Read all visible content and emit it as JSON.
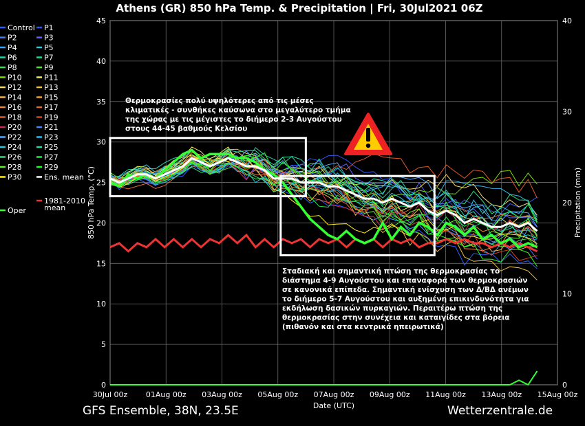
{
  "chart_data": {
    "type": "line",
    "title": "Athens  (GR)  850 hPa Temp. & Precipitation | Fri, 30Jul2021 06Z",
    "xlabel": "Date (UTC)",
    "ylabel": "850 hPa Temp. (°C)",
    "y2label": "Precipitation (mm)",
    "ylim": [
      0,
      45
    ],
    "y2lim": [
      0,
      40
    ],
    "yticks": [
      0,
      5,
      10,
      15,
      20,
      25,
      30,
      35,
      40,
      45
    ],
    "y2ticks": [
      0,
      10,
      20,
      30,
      40
    ],
    "xlim": [
      0,
      64
    ],
    "x_tick_labels": [
      "30Jul 00z",
      "01Aug 00z",
      "03Aug 00z",
      "05Aug 00z",
      "07Aug 00z",
      "09Aug 00z",
      "11Aug 00z",
      "13Aug 00z",
      "15Aug 00z"
    ],
    "x_tick_days": [
      0,
      2,
      4,
      6,
      8,
      10,
      12,
      14,
      16
    ],
    "grid": true,
    "legend_position": "left-outside",
    "legend": [
      {
        "label": "Control",
        "color": "#2f5bff"
      },
      {
        "label": "P1",
        "color": "#3355ee"
      },
      {
        "label": "P2",
        "color": "#4a78ff"
      },
      {
        "label": "P3",
        "color": "#5a63ff"
      },
      {
        "label": "P4",
        "color": "#3fa0ff"
      },
      {
        "label": "P5",
        "color": "#33c6d8"
      },
      {
        "label": "P6",
        "color": "#2ad0b0"
      },
      {
        "label": "P7",
        "color": "#22d890"
      },
      {
        "label": "P8",
        "color": "#33dd55"
      },
      {
        "label": "P9",
        "color": "#55e033"
      },
      {
        "label": "P10",
        "color": "#7ae000"
      },
      {
        "label": "P11",
        "color": "#eeee55"
      },
      {
        "label": "P12",
        "color": "#f5d76e"
      },
      {
        "label": "P13",
        "color": "#f0c040"
      },
      {
        "label": "P14",
        "color": "#f2b24a"
      },
      {
        "label": "P15",
        "color": "#f0a030"
      },
      {
        "label": "P16",
        "color": "#e8893a"
      },
      {
        "label": "P17",
        "color": "#e06a30"
      },
      {
        "label": "P18",
        "color": "#e05a2a"
      },
      {
        "label": "P19",
        "color": "#dd4020"
      },
      {
        "label": "P20",
        "color": "#cc2a55"
      },
      {
        "label": "P21",
        "color": "#4488ff"
      },
      {
        "label": "P22",
        "color": "#55aaff"
      },
      {
        "label": "P23",
        "color": "#33bbee"
      },
      {
        "label": "P24",
        "color": "#22ccdd"
      },
      {
        "label": "P25",
        "color": "#22ddaa"
      },
      {
        "label": "P26",
        "color": "#33dd77"
      },
      {
        "label": "P27",
        "color": "#22ee44"
      },
      {
        "label": "P28",
        "color": "#66ee22"
      },
      {
        "label": "P29",
        "color": "#22ff22"
      },
      {
        "label": "P30",
        "color": "#ffee22"
      },
      {
        "label": "Ens. mean",
        "color": "#ffffff"
      },
      {
        "label": "Oper",
        "color": "#33ff33"
      },
      {
        "label": "1981-2010 mean",
        "color": "#ee3333"
      }
    ],
    "ensemble_mean": [
      25.5,
      25.0,
      25.5,
      26.0,
      26.0,
      25.5,
      26.0,
      26.5,
      27.0,
      28.0,
      27.5,
      27.0,
      27.5,
      28.0,
      27.5,
      27.0,
      27.0,
      26.5,
      25.5,
      25.5,
      25.5,
      25.0,
      25.0,
      25.0,
      24.5,
      24.5,
      24.0,
      23.5,
      23.0,
      23.0,
      22.5,
      23.0,
      22.5,
      22.0,
      22.5,
      21.5,
      21.0,
      21.5,
      21.0,
      20.0,
      20.5,
      20.0,
      19.5,
      19.5,
      20.0,
      19.5,
      20.0,
      19.0
    ],
    "climatology_mean": [
      17.0,
      17.5,
      16.5,
      17.5,
      17.0,
      18.0,
      17.0,
      18.0,
      17.0,
      18.0,
      17.0,
      18.0,
      17.5,
      18.5,
      17.5,
      18.5,
      17.0,
      18.0,
      17.0,
      18.0,
      17.5,
      18.0,
      17.0,
      18.0,
      17.5,
      18.0,
      17.0,
      18.0,
      17.5,
      18.0,
      17.0,
      18.0,
      17.5,
      18.0,
      17.0,
      17.5,
      17.5,
      18.0,
      17.5,
      18.0,
      17.5,
      17.5,
      17.0,
      17.5,
      17.0,
      17.5,
      17.0,
      16.5
    ],
    "oper": [
      25.0,
      24.5,
      26.0,
      25.5,
      26.0,
      25.5,
      26.5,
      27.5,
      28.5,
      29.0,
      28.0,
      28.5,
      28.5,
      28.5,
      28.0,
      28.0,
      27.5,
      26.5,
      26.0,
      25.0,
      23.5,
      22.0,
      20.5,
      19.5,
      18.5,
      18.0,
      19.0,
      18.0,
      17.5,
      18.0,
      20.0,
      18.0,
      19.5,
      18.5,
      20.0,
      19.5,
      18.5,
      20.0,
      19.5,
      18.5,
      19.5,
      18.0,
      18.5,
      17.5,
      18.0,
      17.0,
      17.5,
      17.0
    ],
    "precipitation_mm": [
      0,
      0,
      0,
      0,
      0,
      0,
      0,
      0,
      0,
      0,
      0,
      0,
      0,
      0,
      0,
      0,
      0,
      0,
      0,
      0,
      0,
      0,
      0,
      0,
      0,
      0,
      0,
      0,
      0,
      0,
      0,
      0,
      0,
      0,
      0,
      0,
      0,
      0,
      0,
      0,
      0,
      0,
      0,
      0,
      0,
      0.5,
      0,
      1.5
    ],
    "annotations": [
      {
        "text": [
          "Θερμοκρασίες πολύ υψηλότερες από τις μέσες",
          "κλιματικές - συνθήκες καύσωνα στο μεγαλύτερο τμήμα",
          "της χώρας με τις μέγιστες το διήμερο 2-3 Αυγούστου",
          "στους 44-45 βαθμούς Κελσίου"
        ]
      },
      {
        "text": [
          "Σταδιακή και σημαντική πτώση της θερμοκρασίας το",
          "διάστημα 4-9 Αυγούστου και επαναφορά των θερμοκρασιών",
          "σε κανονικά επίπεδα. Σημαντική ενίσχυση των Δ/ΒΔ ανέμων",
          "το διήμερο 5-7 Αυγούστου και αυξημένη επικινδυνότητα για",
          "εκδήλωση δασικών πυρκαγιών. Περαιτέρω πτώση της",
          "θερμοκρασίας στην συνέχεια και καταιγίδες στα βόρεια",
          "(πιθανόν και στα κεντρικά ηπειρωτικά)"
        ]
      }
    ],
    "highlight_boxes": [
      {
        "x_days": [
          0.0,
          7.0
        ],
        "y_temp": [
          23.3,
          30.5
        ]
      },
      {
        "x_days": [
          6.1,
          11.6
        ],
        "y_temp": [
          16.0,
          25.8
        ]
      }
    ],
    "warning_icon": "warning-triangle-icon",
    "colors": {
      "background": "#000000",
      "grid": "#6a6a6a",
      "mean": "#ffffff",
      "climatology": "#ee3333",
      "oper": "#33ff33",
      "box": "#ffffff",
      "warning": "#ee2222",
      "warning_fill": "#ffcc00"
    }
  },
  "footer": {
    "left": "GFS Ensemble, 38N, 23.5E",
    "right": "Wetterzentrale.de"
  }
}
